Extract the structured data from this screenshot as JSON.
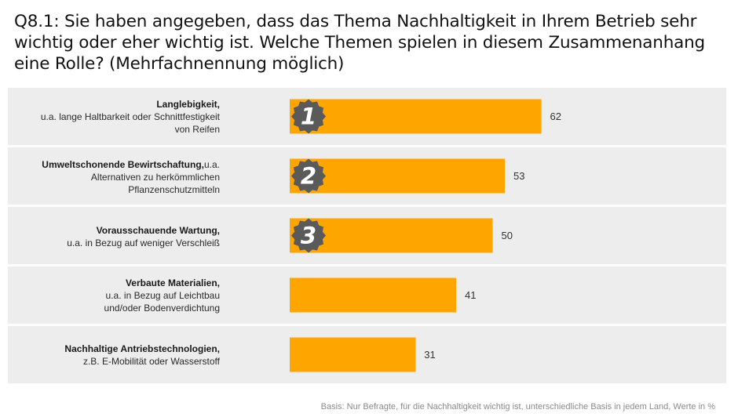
{
  "title": "Q8.1: Sie haben angegeben, dass das Thema Nachhaltigkeit in Ihrem Betrieb sehr wichtig oder eher wichtig ist. Welche Themen spielen in diesem Zusammenanhang eine Rolle? (Mehrfachnennung möglich)",
  "footnote": "Basis: Nur Befragte, für die Nachhaltigkeit wichtig ist, unterschiedliche Basis in jedem Land, Werte in %",
  "colors": {
    "bar": "#ffa500",
    "row_background": "#ededed",
    "rank_badge": "#5a5a5a"
  },
  "rows": [
    {
      "bold": "Langlebigkeit,",
      "rest_lines": [
        "u.a. lange Haltbarkeit oder Schnittfestigkeit",
        "von Reifen"
      ]
    },
    {
      "bold": "Umweltschonende Bewirtschaftung,",
      "bold_suffix": "u.a.",
      "rest_lines": [
        "Alternativen zu herkömmlichen",
        "Pflanzenschutzmitteln"
      ]
    },
    {
      "bold": "Vorausschauende Wartung,",
      "rest_lines": [
        "u.a. in Bezug auf weniger Verschleiß"
      ]
    },
    {
      "bold": "Verbaute Materialien,",
      "rest_lines": [
        "u.a. in Bezug auf Leichtbau",
        "und/oder Bodenverdichtung"
      ]
    },
    {
      "bold": "Nachhaltige Antriebstechnologien,",
      "rest_lines": [
        "z.B. E-Mobilität oder Wasserstoff"
      ]
    }
  ],
  "chart_data": {
    "type": "bar",
    "orientation": "horizontal",
    "categories": [
      "Langlebigkeit",
      "Umweltschonende Bewirtschaftung",
      "Vorausschauende Wartung",
      "Verbaute Materialien",
      "Nachhaltige Antriebstechnologien"
    ],
    "values": [
      62,
      53,
      50,
      41,
      31
    ],
    "value_labels": [
      "62",
      "53",
      "50",
      "41",
      "31"
    ],
    "rank_badges": [
      "1",
      "2",
      "3"
    ],
    "unit": "%",
    "grid": false,
    "legend": "none"
  }
}
